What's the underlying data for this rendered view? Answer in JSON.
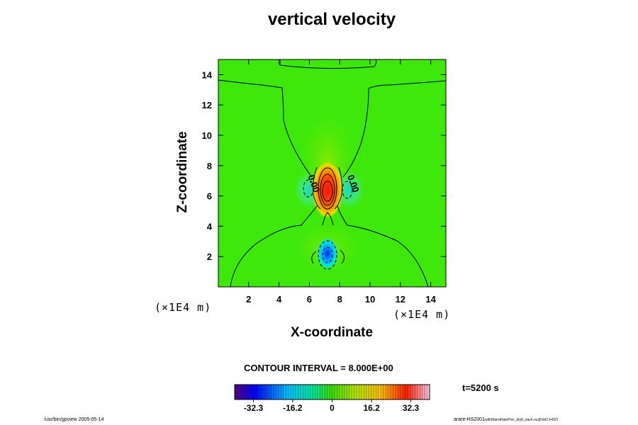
{
  "chart_data": {
    "type": "heatmap",
    "title": "vertical velocity",
    "xlabel": "X-coordinate",
    "ylabel": "Z-coordinate",
    "x_unit": "(×1E4 m)",
    "z_unit": "(×1E4 m)",
    "xlim": [
      0,
      15
    ],
    "ylim": [
      0,
      15
    ],
    "x_ticks": [
      2,
      4,
      6,
      8,
      10,
      12,
      14
    ],
    "y_ticks": [
      2,
      4,
      6,
      8,
      10,
      12,
      14
    ],
    "contour_interval_label": "CONTOUR INTERVAL = 8.000E+00",
    "contour_labels": [
      {
        "text": "0.00",
        "x": 5.9,
        "z": 7.3
      },
      {
        "text": "0.00",
        "x": 8.5,
        "z": 7.3
      }
    ],
    "features": [
      {
        "name": "updraft-core",
        "x": 7.2,
        "z": 6.2,
        "peak": 36
      },
      {
        "name": "downdraft-core",
        "x": 7.1,
        "z": 2.1,
        "peak": -36
      },
      {
        "name": "side-downdraft-left",
        "x": 6.0,
        "z": 6.2,
        "peak": -10
      },
      {
        "name": "side-downdraft-right",
        "x": 8.6,
        "z": 6.3,
        "peak": -10
      }
    ],
    "colorbar": {
      "ticks": [
        -32.3,
        -16.2,
        0,
        16.2,
        32.3
      ],
      "tick_labels": [
        "-32.3",
        "-16.2",
        "0",
        "16.2",
        "32.3"
      ],
      "range": [
        -40,
        40
      ]
    },
    "time_label": "t=5200 s"
  },
  "footer": {
    "left": "/usr/bin/gpview 2005-05-14",
    "right_main": "arare-HS2001",
    "right_small": "withWarmRainPrm_dry8_each.nc@Vel2,t=520"
  }
}
